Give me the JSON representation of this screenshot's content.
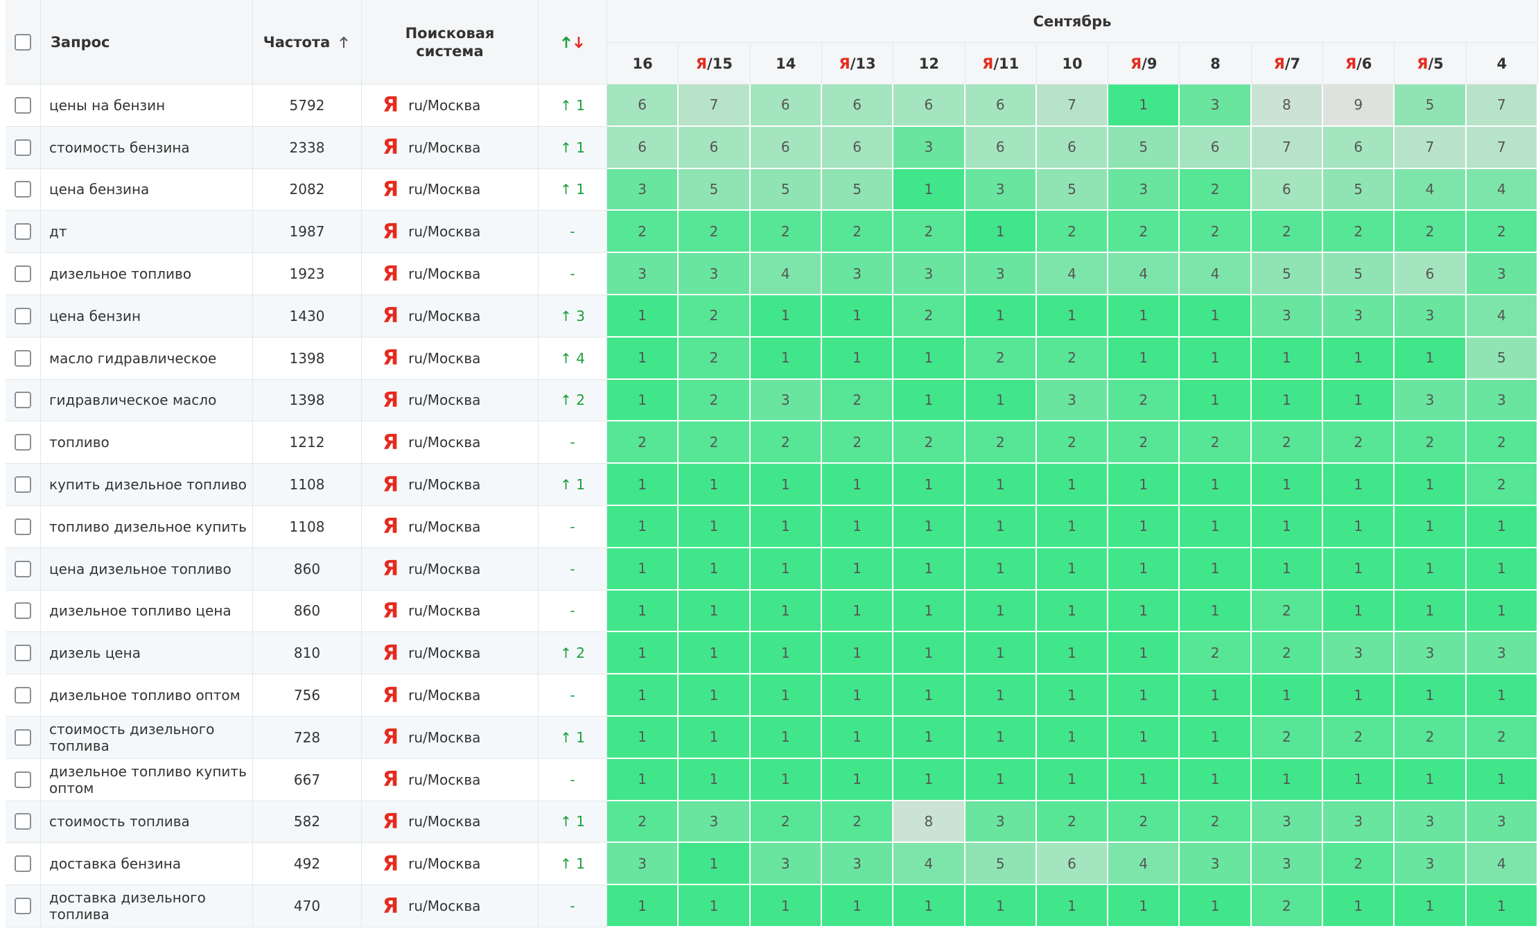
{
  "table": {
    "headers": {
      "query": "Запрос",
      "frequency": "Частота",
      "engine": "Поисковая система",
      "month": "Сентябрь",
      "dates": [
        {
          "label": "16"
        },
        {
          "prefix": "Я",
          "label": "/15"
        },
        {
          "label": "14"
        },
        {
          "prefix": "Я",
          "label": "/13"
        },
        {
          "label": "12"
        },
        {
          "prefix": "Я",
          "label": "/11"
        },
        {
          "label": "10"
        },
        {
          "prefix": "Я",
          "label": "/9"
        },
        {
          "label": "8"
        },
        {
          "prefix": "Я",
          "label": "/7"
        },
        {
          "prefix": "Я",
          "label": "/6"
        },
        {
          "prefix": "Я",
          "label": "/5"
        },
        {
          "label": "4"
        }
      ]
    },
    "rows": [
      {
        "query": "цены на бензин",
        "frequency": 5792,
        "icon": "Я",
        "region": "ru/Москва",
        "change": "↑ 1",
        "positions": [
          6,
          7,
          6,
          6,
          6,
          6,
          7,
          1,
          3,
          8,
          9,
          5,
          7
        ]
      },
      {
        "query": "стоимость бензина",
        "frequency": 2338,
        "icon": "Я",
        "region": "ru/Москва",
        "change": "↑ 1",
        "positions": [
          6,
          6,
          6,
          6,
          3,
          6,
          6,
          5,
          6,
          7,
          6,
          7,
          7
        ]
      },
      {
        "query": "цена бензина",
        "frequency": 2082,
        "icon": "Я",
        "region": "ru/Москва",
        "change": "↑ 1",
        "positions": [
          3,
          5,
          5,
          5,
          1,
          3,
          5,
          3,
          2,
          6,
          5,
          4,
          4
        ]
      },
      {
        "query": "дт",
        "frequency": 1987,
        "icon": "Я",
        "region": "ru/Москва",
        "change": "-",
        "positions": [
          2,
          2,
          2,
          2,
          2,
          1,
          2,
          2,
          2,
          2,
          2,
          2,
          2
        ]
      },
      {
        "query": "дизельное топливо",
        "frequency": 1923,
        "icon": "Я",
        "region": "ru/Москва",
        "change": "-",
        "positions": [
          3,
          3,
          4,
          3,
          3,
          3,
          4,
          4,
          4,
          5,
          5,
          6,
          3
        ]
      },
      {
        "query": "цена бензин",
        "frequency": 1430,
        "icon": "Я",
        "region": "ru/Москва",
        "change": "↑ 3",
        "positions": [
          1,
          2,
          1,
          1,
          2,
          1,
          1,
          1,
          1,
          3,
          3,
          3,
          4
        ]
      },
      {
        "query": "масло гидравлическое",
        "frequency": 1398,
        "icon": "Я",
        "region": "ru/Москва",
        "change": "↑ 4",
        "positions": [
          1,
          2,
          1,
          1,
          1,
          2,
          2,
          1,
          1,
          1,
          1,
          1,
          5
        ]
      },
      {
        "query": "гидравлическое масло",
        "frequency": 1398,
        "icon": "Я",
        "region": "ru/Москва",
        "change": "↑ 2",
        "positions": [
          1,
          2,
          3,
          2,
          1,
          1,
          3,
          2,
          1,
          1,
          1,
          3,
          3
        ]
      },
      {
        "query": "топливо",
        "frequency": 1212,
        "icon": "Я",
        "region": "ru/Москва",
        "change": "-",
        "positions": [
          2,
          2,
          2,
          2,
          2,
          2,
          2,
          2,
          2,
          2,
          2,
          2,
          2
        ]
      },
      {
        "query": "купить дизельное топливо",
        "frequency": 1108,
        "icon": "Я",
        "region": "ru/Москва",
        "change": "↑ 1",
        "positions": [
          1,
          1,
          1,
          1,
          1,
          1,
          1,
          1,
          1,
          1,
          1,
          1,
          2
        ]
      },
      {
        "query": "топливо дизельное купить",
        "frequency": 1108,
        "icon": "Я",
        "region": "ru/Москва",
        "change": "-",
        "positions": [
          1,
          1,
          1,
          1,
          1,
          1,
          1,
          1,
          1,
          1,
          1,
          1,
          1
        ]
      },
      {
        "query": "цена дизельное топливо",
        "frequency": 860,
        "icon": "Я",
        "region": "ru/Москва",
        "change": "-",
        "positions": [
          1,
          1,
          1,
          1,
          1,
          1,
          1,
          1,
          1,
          1,
          1,
          1,
          1
        ]
      },
      {
        "query": "дизельное топливо цена",
        "frequency": 860,
        "icon": "Я",
        "region": "ru/Москва",
        "change": "-",
        "positions": [
          1,
          1,
          1,
          1,
          1,
          1,
          1,
          1,
          1,
          2,
          1,
          1,
          1
        ]
      },
      {
        "query": "дизель цена",
        "frequency": 810,
        "icon": "Я",
        "region": "ru/Москва",
        "change": "↑ 2",
        "positions": [
          1,
          1,
          1,
          1,
          1,
          1,
          1,
          1,
          2,
          2,
          3,
          3,
          3
        ]
      },
      {
        "query": "дизельное топливо оптом",
        "frequency": 756,
        "icon": "Я",
        "region": "ru/Москва",
        "change": "-",
        "positions": [
          1,
          1,
          1,
          1,
          1,
          1,
          1,
          1,
          1,
          1,
          1,
          1,
          1
        ]
      },
      {
        "query": "стоимость дизельного топлива",
        "frequency": 728,
        "icon": "Я",
        "region": "ru/Москва",
        "change": "↑ 1",
        "positions": [
          1,
          1,
          1,
          1,
          1,
          1,
          1,
          1,
          1,
          2,
          2,
          2,
          2
        ]
      },
      {
        "query": "дизельное топливо купить оптом",
        "frequency": 667,
        "icon": "Я",
        "region": "ru/Москва",
        "change": "-",
        "positions": [
          1,
          1,
          1,
          1,
          1,
          1,
          1,
          1,
          1,
          1,
          1,
          1,
          1
        ]
      },
      {
        "query": "стоимость топлива",
        "frequency": 582,
        "icon": "Я",
        "region": "ru/Москва",
        "change": "↑ 1",
        "positions": [
          2,
          3,
          2,
          2,
          8,
          3,
          2,
          2,
          2,
          3,
          3,
          3,
          3
        ]
      },
      {
        "query": "доставка бензина",
        "frequency": 492,
        "icon": "Я",
        "region": "ru/Москва",
        "change": "↑ 1",
        "positions": [
          3,
          1,
          3,
          3,
          4,
          5,
          6,
          4,
          3,
          3,
          2,
          3,
          4
        ]
      },
      {
        "query": "доставка дизельного топлива",
        "frequency": 470,
        "icon": "Я",
        "region": "ru/Москва",
        "change": "-",
        "positions": [
          1,
          1,
          1,
          1,
          1,
          1,
          1,
          1,
          1,
          2,
          1,
          1,
          1
        ]
      }
    ]
  }
}
